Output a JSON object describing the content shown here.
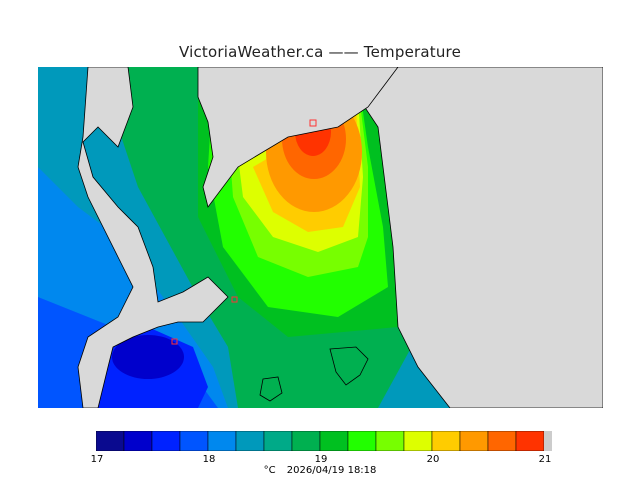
{
  "title": "VictoriaWeather.ca —— Temperature",
  "colors": {
    "land": "#d9d9d9",
    "coastline": "#000000",
    "station_marker": "#ff3333",
    "scale": [
      "#0a0a8f",
      "#0000cc",
      "#0022ff",
      "#0055ff",
      "#0088ee",
      "#0099bb",
      "#00aa88",
      "#00b050",
      "#00c020",
      "#22ff00",
      "#77ff00",
      "#ddff00",
      "#ffcc00",
      "#ff9900",
      "#ff6600",
      "#ff3300",
      "#ff0000"
    ]
  },
  "legend": {
    "labels": [
      "17",
      "18",
      "19",
      "20",
      "21"
    ],
    "unit": "°C",
    "timestamp": "2026/04/19 18:18"
  }
}
